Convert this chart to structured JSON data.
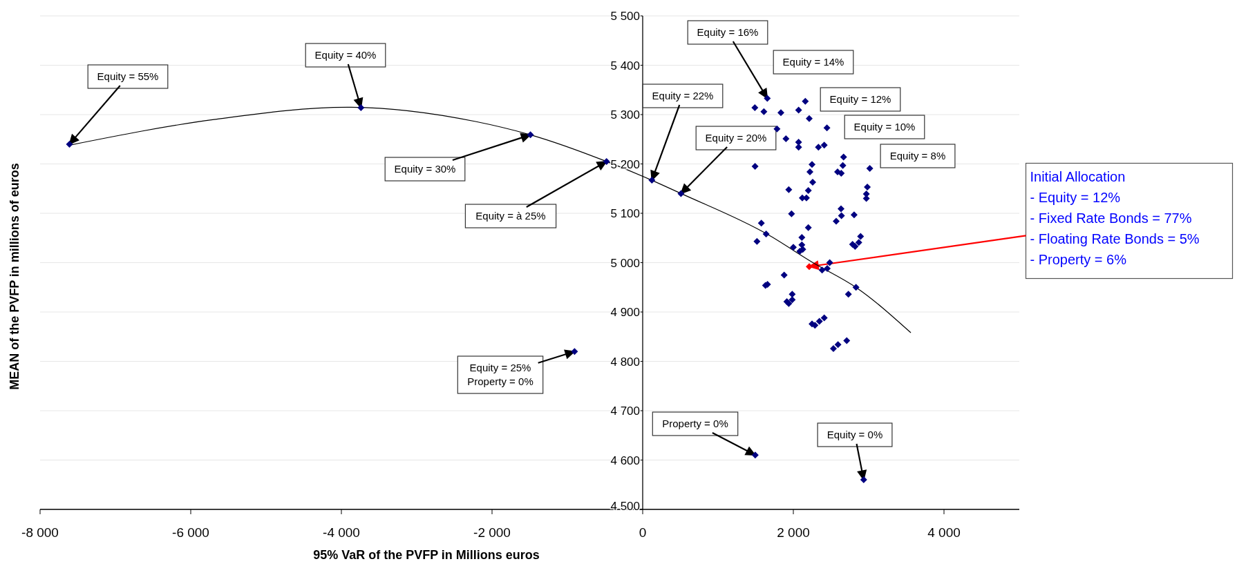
{
  "chart_data": {
    "type": "scatter",
    "xlabel": "95% VaR of the PVFP in Millions euros",
    "ylabel": "MEAN of the PVFP in millions of euros",
    "xlim": [
      -8000,
      5000
    ],
    "xticks": [
      {
        "value": -8000,
        "label": "-8 000"
      },
      {
        "value": -6000,
        "label": "-6 000"
      },
      {
        "value": -4000,
        "label": "-4 000"
      },
      {
        "value": -2000,
        "label": "-2 000"
      },
      0,
      {
        "value": 2000,
        "label": "2 000"
      },
      {
        "value": 4000,
        "label": "4 000"
      }
    ],
    "ylim": [
      4500,
      5500
    ],
    "yticks": [
      {
        "value": 4500,
        "label": "4 500"
      },
      {
        "value": 4600,
        "label": "4 600"
      },
      {
        "value": 4700,
        "label": "4 700"
      },
      {
        "value": 4800,
        "label": "4 800"
      },
      {
        "value": 4900,
        "label": "4 900"
      },
      {
        "value": 5000,
        "label": "5 000"
      },
      {
        "value": 5100,
        "label": "5 100"
      },
      {
        "value": 5200,
        "label": "5 200"
      },
      {
        "value": 5300,
        "label": "5 300"
      },
      {
        "value": 5400,
        "label": "5 400"
      },
      {
        "value": 5500,
        "label": "5 500"
      }
    ],
    "grid": "y",
    "marker": "diamond",
    "series": [
      {
        "type": "line",
        "color": "#000000",
        "marker": "none",
        "x": [
          -7610,
          -5690,
          -3920,
          -2220,
          -1490,
          -480,
          120,
          510,
          1650,
          2260,
          2840,
          3560
        ],
        "values": [
          5238,
          5290,
          5315,
          5286,
          5259,
          5205,
          5167,
          5140,
          5058,
          5000,
          4949,
          4858
        ]
      },
      {
        "type": "scatter",
        "color": "#000080",
        "x": [
          -7610,
          -3740,
          -1490,
          -480,
          -905,
          1494,
          2934,
          122,
          508,
          1654,
          1489,
          1609,
          1835,
          2070,
          2159,
          2211,
          1783,
          1902,
          2070,
          2070,
          2446,
          2333,
          2410,
          1492,
          2248,
          2220,
          2257,
          2199,
          2119,
          2174,
          1939,
          1976,
          2667,
          2657,
          2587,
          2636,
          3015,
          2982,
          2969,
          2969,
          2633,
          2639,
          2569,
          2807,
          1575,
          1639,
          1517,
          2199,
          2113,
          2113,
          2000,
          2125,
          2086,
          2893,
          2869,
          2786,
          2820,
          2483,
          2450,
          2382,
          1878,
          1657,
          1630,
          1985,
          1985,
          1914,
          1939,
          2832,
          2731,
          2248,
          2287,
          2346,
          2410,
          2532,
          2593,
          2709
        ],
        "values": [
          5240,
          5314,
          5259,
          5205,
          4820,
          4610,
          4560,
          5167,
          5140,
          5333,
          5314,
          5306,
          5304,
          5309,
          5327,
          5292,
          5271,
          5251,
          5244,
          5234,
          5273,
          5234,
          5238,
          5195,
          5199,
          5184,
          5163,
          5146,
          5131,
          5131,
          5148,
          5099,
          5214,
          5197,
          5184,
          5181,
          5191,
          5153,
          5139,
          5130,
          5109,
          5095,
          5084,
          5097,
          5080,
          5058,
          5043,
          5071,
          5051,
          5036,
          5031,
          5027,
          5023,
          5053,
          5041,
          5037,
          5033,
          5000,
          4988,
          4985,
          4975,
          4956,
          4954,
          4936,
          4925,
          4921,
          4917,
          4950,
          4936,
          4876,
          4873,
          4881,
          4888,
          4826,
          4834,
          4842
        ]
      },
      {
        "type": "scatter",
        "color": "#ff0000",
        "x": [
          2211
        ],
        "values": [
          4992
        ]
      }
    ],
    "annotations": [
      {
        "text": "Equity = 55%",
        "x": -7610,
        "y": 5240
      },
      {
        "text": "Equity = 40%",
        "x": -3740,
        "y": 5314
      },
      {
        "text": "Equity = 30%",
        "x": -1490,
        "y": 5259
      },
      {
        "text": "Equity = à 25%",
        "x": -480,
        "y": 5205
      },
      {
        "text": "Equity = 22%",
        "x": 122,
        "y": 5167
      },
      {
        "text": "Equity = 20%",
        "x": 508,
        "y": 5140
      },
      {
        "text": "Equity = 16%",
        "x": 1654,
        "y": 5333
      },
      "Equity = 14%",
      "Equity = 12%",
      "Equity = 10%",
      "Equity = 8%",
      {
        "text": "Equity = 25%\nProperty = 0%",
        "x": -905,
        "y": 4820
      },
      {
        "text": "Property = 0%",
        "x": 1494,
        "y": 4610
      },
      {
        "text": "Equity = 0%",
        "x": 2934,
        "y": 4560
      },
      {
        "text": "Initial Allocation\n- Equity = 12%\n- Fixed Rate Bonds = 77%\n- Floating Rate Bonds = 5%\n- Property = 6%",
        "x": 2211,
        "y": 4992
      }
    ]
  }
}
